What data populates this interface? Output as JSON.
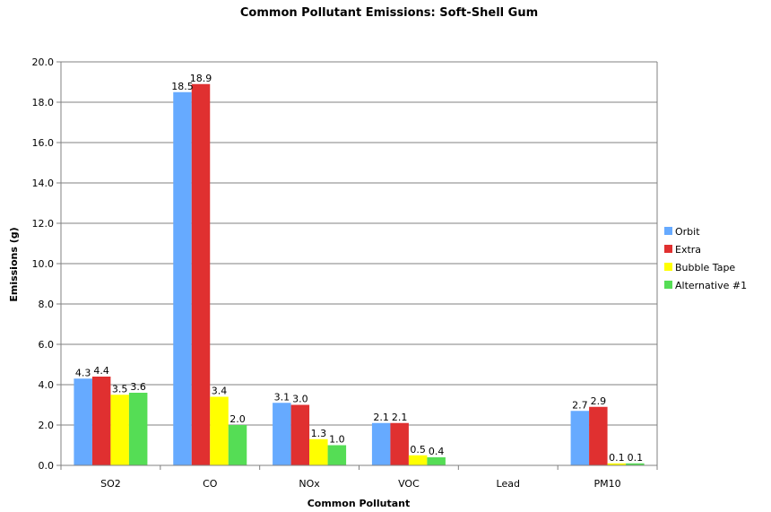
{
  "chart_data": {
    "type": "bar",
    "title": "Common Pollutant Emissions: Soft-Shell Gum",
    "xlabel": "Common Pollutant",
    "ylabel": "Emissions (g)",
    "categories": [
      "SO2",
      "CO",
      "NOx",
      "VOC",
      "Lead",
      "PM10"
    ],
    "ylim": [
      0,
      20
    ],
    "ytick_step": 2,
    "ytick_labels": [
      "0.0",
      "2.0",
      "4.0",
      "6.0",
      "8.0",
      "10.0",
      "12.0",
      "14.0",
      "16.0",
      "18.0",
      "20.0"
    ],
    "grid": true,
    "legend_position": "right",
    "series": [
      {
        "name": "Orbit",
        "color": "#66aaff",
        "values": [
          4.3,
          18.5,
          3.1,
          2.1,
          0,
          2.7
        ]
      },
      {
        "name": "Extra",
        "color": "#e03030",
        "values": [
          4.4,
          18.9,
          3.0,
          2.1,
          0,
          2.9
        ]
      },
      {
        "name": "Bubble Tape",
        "color": "#ffff00",
        "values": [
          3.5,
          3.4,
          1.3,
          0.5,
          0,
          0.1
        ]
      },
      {
        "name": "Alternative #1",
        "color": "#55dd55",
        "values": [
          3.6,
          2.0,
          1.0,
          0.4,
          0,
          0.1
        ]
      }
    ],
    "data_labels": [
      [
        "4.3",
        "18.5",
        "3.1",
        "2.1",
        "",
        "2.7"
      ],
      [
        "4.4",
        "18.9",
        "3.0",
        "2.1",
        "",
        "2.9"
      ],
      [
        "3.5",
        "3.4",
        "1.3",
        "0.5",
        "",
        "0.1"
      ],
      [
        "3.6",
        "2.0",
        "1.0",
        "0.4",
        "",
        "0.1"
      ]
    ]
  }
}
